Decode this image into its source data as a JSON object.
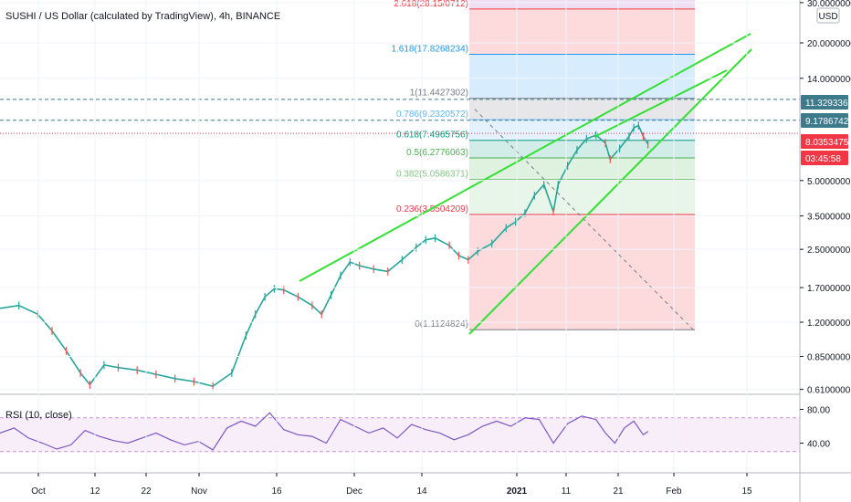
{
  "chart_data": {
    "type": "line",
    "title": "SUSHI / US Dollar (calculated by TradingView), 4h, BINANCE",
    "price_scale": "log",
    "currency_label": "USD",
    "y_ticks": [
      "30.0000000",
      "20.0000000",
      "14.0000000",
      "5.0000000",
      "3.5000000",
      "2.5000000",
      "1.7000000",
      "1.2000000",
      "0.8500000",
      "0.6100000"
    ],
    "x_ticks": [
      "Oct",
      "12",
      "22",
      "Nov",
      "16",
      "Dec",
      "14",
      "2021",
      "11",
      "21",
      "Feb",
      "15"
    ],
    "fib_levels": [
      {
        "label": "2.618(28.15/0712)",
        "value": 28.15,
        "color": "#f23645"
      },
      {
        "label": "1.618(17.8268234)",
        "value": 17.8268234,
        "color": "#2196f3"
      },
      {
        "label": "1(11.4427302)",
        "value": 11.4427302,
        "color": "#787b86"
      },
      {
        "label": "0.786(9.2320572)",
        "value": 9.2320572,
        "color": "#64b5f6"
      },
      {
        "label": "0.618(7.4965756)",
        "value": 7.4965756,
        "color": "#089981"
      },
      {
        "label": "0.5(6.2776063)",
        "value": 6.2776063,
        "color": "#4caf50"
      },
      {
        "label": "0.382(5.0586371)",
        "value": 5.0586371,
        "color": "#81c784"
      },
      {
        "label": "0.236(3.5504209)",
        "value": 3.5504209,
        "color": "#f23645"
      },
      {
        "label": "0(1.1124824)",
        "value": 1.1124824,
        "color": "#787b86"
      }
    ],
    "price_badges": [
      {
        "label": "11.3293368",
        "value": 11.3293368,
        "color": "#3d7a8c"
      },
      {
        "label": "9.1786742",
        "value": 9.1786742,
        "color": "#3d7a8c"
      },
      {
        "label": "8.0353475",
        "value": 8.0353475,
        "color": "#f23645"
      },
      {
        "label": "03:45:58",
        "color": "#f23645"
      }
    ],
    "series": [
      {
        "name": "price",
        "values": [
          [
            0,
            1.38
          ],
          [
            4,
            1.42
          ],
          [
            8,
            1.3
          ],
          [
            11,
            1.1
          ],
          [
            14,
            0.9
          ],
          [
            17,
            0.72
          ],
          [
            19,
            0.64
          ],
          [
            22,
            0.78
          ],
          [
            25,
            0.76
          ],
          [
            29,
            0.74
          ],
          [
            33,
            0.71
          ],
          [
            37,
            0.68
          ],
          [
            41,
            0.66
          ],
          [
            45,
            0.63
          ],
          [
            49,
            0.72
          ],
          [
            52,
            1.05
          ],
          [
            54,
            1.3
          ],
          [
            56,
            1.55
          ],
          [
            58,
            1.68
          ],
          [
            60,
            1.66
          ],
          [
            63,
            1.55
          ],
          [
            66,
            1.42
          ],
          [
            68,
            1.3
          ],
          [
            70,
            1.58
          ],
          [
            72,
            1.92
          ],
          [
            74,
            2.2
          ],
          [
            76,
            2.12
          ],
          [
            79,
            2.05
          ],
          [
            82,
            2.0
          ],
          [
            85,
            2.25
          ],
          [
            88,
            2.55
          ],
          [
            90,
            2.75
          ],
          [
            92,
            2.8
          ],
          [
            95,
            2.6
          ],
          [
            97,
            2.35
          ],
          [
            99,
            2.25
          ],
          [
            101,
            2.45
          ],
          [
            104,
            2.65
          ],
          [
            107,
            3.1
          ],
          [
            109,
            3.3
          ],
          [
            111,
            3.6
          ],
          [
            113,
            4.3
          ],
          [
            115,
            4.8
          ],
          [
            117,
            3.65
          ],
          [
            118,
            4.8
          ],
          [
            120,
            5.8
          ],
          [
            122,
            6.8
          ],
          [
            124,
            7.6
          ],
          [
            126,
            7.9
          ],
          [
            128,
            7.3
          ],
          [
            129,
            6.2
          ],
          [
            131,
            6.9
          ],
          [
            133,
            7.8
          ],
          [
            134,
            8.5
          ],
          [
            135,
            8.7
          ],
          [
            136,
            7.8
          ],
          [
            137,
            7.2
          ]
        ]
      },
      {
        "name": "RSI (10, close)",
        "values": [
          [
            0,
            52
          ],
          [
            3,
            58
          ],
          [
            6,
            46
          ],
          [
            9,
            40
          ],
          [
            12,
            33
          ],
          [
            15,
            38
          ],
          [
            18,
            55
          ],
          [
            21,
            48
          ],
          [
            24,
            43
          ],
          [
            27,
            40
          ],
          [
            30,
            46
          ],
          [
            33,
            52
          ],
          [
            36,
            44
          ],
          [
            39,
            38
          ],
          [
            42,
            42
          ],
          [
            45,
            32
          ],
          [
            48,
            58
          ],
          [
            51,
            66
          ],
          [
            54,
            60
          ],
          [
            57,
            76
          ],
          [
            60,
            56
          ],
          [
            63,
            50
          ],
          [
            66,
            48
          ],
          [
            69,
            40
          ],
          [
            72,
            68
          ],
          [
            75,
            60
          ],
          [
            78,
            52
          ],
          [
            81,
            58
          ],
          [
            84,
            46
          ],
          [
            87,
            62
          ],
          [
            90,
            56
          ],
          [
            93,
            52
          ],
          [
            96,
            44
          ],
          [
            99,
            50
          ],
          [
            102,
            60
          ],
          [
            105,
            66
          ],
          [
            108,
            60
          ],
          [
            111,
            70
          ],
          [
            114,
            68
          ],
          [
            117,
            40
          ],
          [
            120,
            63
          ],
          [
            123,
            72
          ],
          [
            126,
            68
          ],
          [
            128,
            52
          ],
          [
            130,
            40
          ],
          [
            132,
            58
          ],
          [
            134,
            66
          ],
          [
            136,
            50
          ],
          [
            137,
            54
          ]
        ]
      }
    ],
    "rsi_title": "RSI (10, close)",
    "rsi_ticks": [
      "80.00",
      "40.00"
    ],
    "rsi_band": [
      30,
      70
    ]
  }
}
